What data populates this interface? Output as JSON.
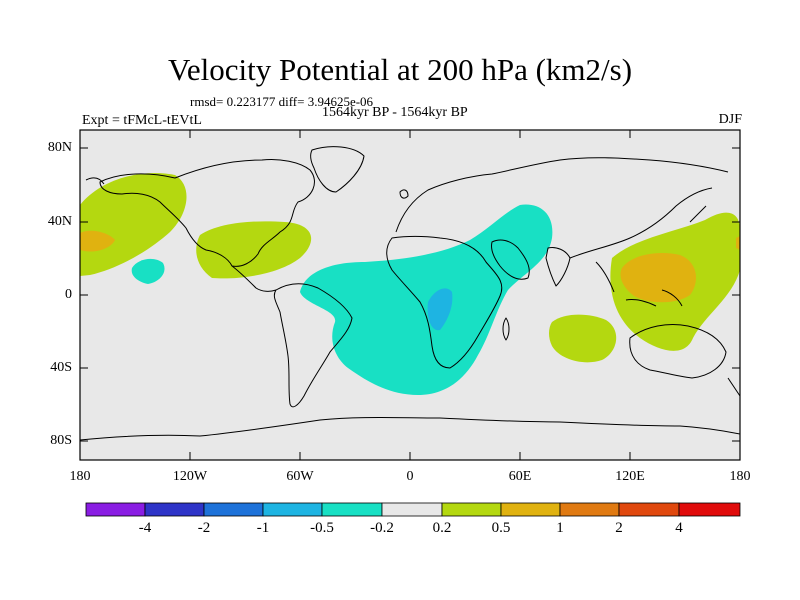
{
  "title": "Velocity Potential at 200 hPa (km2/s)",
  "stats": {
    "rmsd_diff": "rmsd= 0.223177 diff= 3.94625e-06",
    "period": "1564kyr BP - 1564kyr BP",
    "experiment": "Expt = tFMcL-tEVtL",
    "season": "DJF"
  },
  "axes": {
    "y_labels": [
      "80N",
      "40N",
      "0",
      "40S",
      "80S"
    ],
    "x_labels": [
      "180",
      "120W",
      "60W",
      "0",
      "60E",
      "120E",
      "180"
    ]
  },
  "colorbar": {
    "labels": [
      "-4",
      "-2",
      "-1",
      "-0.5",
      "-0.2",
      "0.2",
      "0.5",
      "1",
      "2",
      "4"
    ],
    "colors": [
      "#8a1de3",
      "#2e34c8",
      "#1e72d9",
      "#1eb4e2",
      "#18e0c4",
      "#e8e8e8",
      "#b4d810",
      "#e0b210",
      "#e07a12",
      "#e0480e",
      "#e00b0b"
    ]
  },
  "colors": {
    "ocean_bg": "#e8e8e8",
    "neg_02_05": "#18e0c4",
    "neg_05_1": "#1eb4e2",
    "pos_02_05": "#b4d810",
    "pos_05_1": "#e0b210",
    "pos_1_2": "#e07a12"
  }
}
